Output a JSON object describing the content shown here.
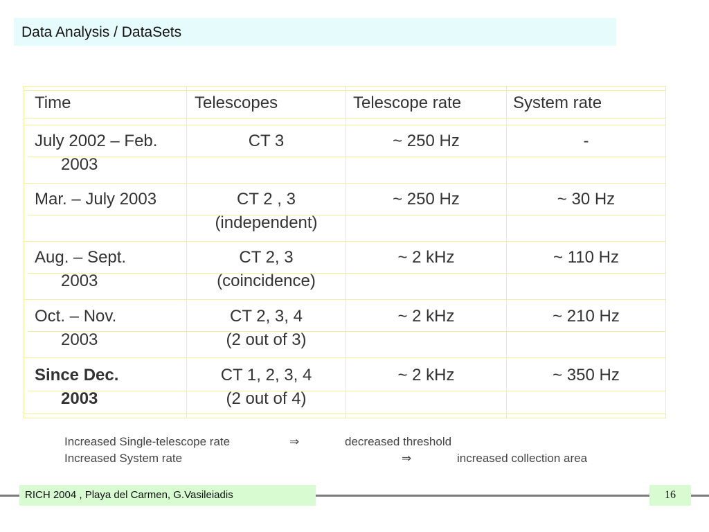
{
  "slide": {
    "title": "Data Analysis / DataSets"
  },
  "table": {
    "headers": [
      "Time",
      "Telescopes",
      "Telescope rate",
      "System rate"
    ],
    "rows": [
      {
        "time_line1": "July 2002 – Feb.",
        "time_line2": "2003",
        "telescopes_line1": "CT 3",
        "telescopes_line2": "",
        "telescope_rate": "~ 250 Hz",
        "system_rate": "-"
      },
      {
        "time_line1": "Mar. – July 2003",
        "time_line2": "",
        "telescopes_line1": "CT 2 , 3",
        "telescopes_line2": "(independent)",
        "telescope_rate": "~ 250 Hz",
        "system_rate": "~ 30 Hz"
      },
      {
        "time_line1": "Aug. – Sept.",
        "time_line2": "2003",
        "telescopes_line1": "CT 2, 3",
        "telescopes_line2": "(coincidence)",
        "telescope_rate": "~ 2 kHz",
        "system_rate": "~ 110 Hz"
      },
      {
        "time_line1": "Oct. – Nov.",
        "time_line2": "2003",
        "telescopes_line1": "CT 2, 3, 4",
        "telescopes_line2": "(2 out of 3)",
        "telescope_rate": "~ 2 kHz",
        "system_rate": "~ 210 Hz"
      },
      {
        "time_line1": "Since Dec.",
        "time_line2": "2003",
        "telescopes_line1": "CT 1, 2, 3, 4",
        "telescopes_line2": "(2 out of 4)",
        "telescope_rate": "~ 2 kHz",
        "system_rate": "~ 350 Hz"
      }
    ]
  },
  "notes": {
    "line1_cause": "Increased Single-telescope rate",
    "line1_arrow": "⇒",
    "line1_effect": "decreased threshold",
    "line2_cause": "Increased System rate",
    "line2_arrow": "⇒",
    "line2_effect": "increased collection area"
  },
  "footer": {
    "text": "RICH 2004 , Playa del Carmen, G.Vasileiadis",
    "page_number": "16"
  },
  "colors": {
    "title_bg": "#e6fbfb",
    "grid_lines": "#f4ef9a",
    "footer_bg": "#d8fbd2",
    "footer_rule": "#7a7a7a"
  }
}
